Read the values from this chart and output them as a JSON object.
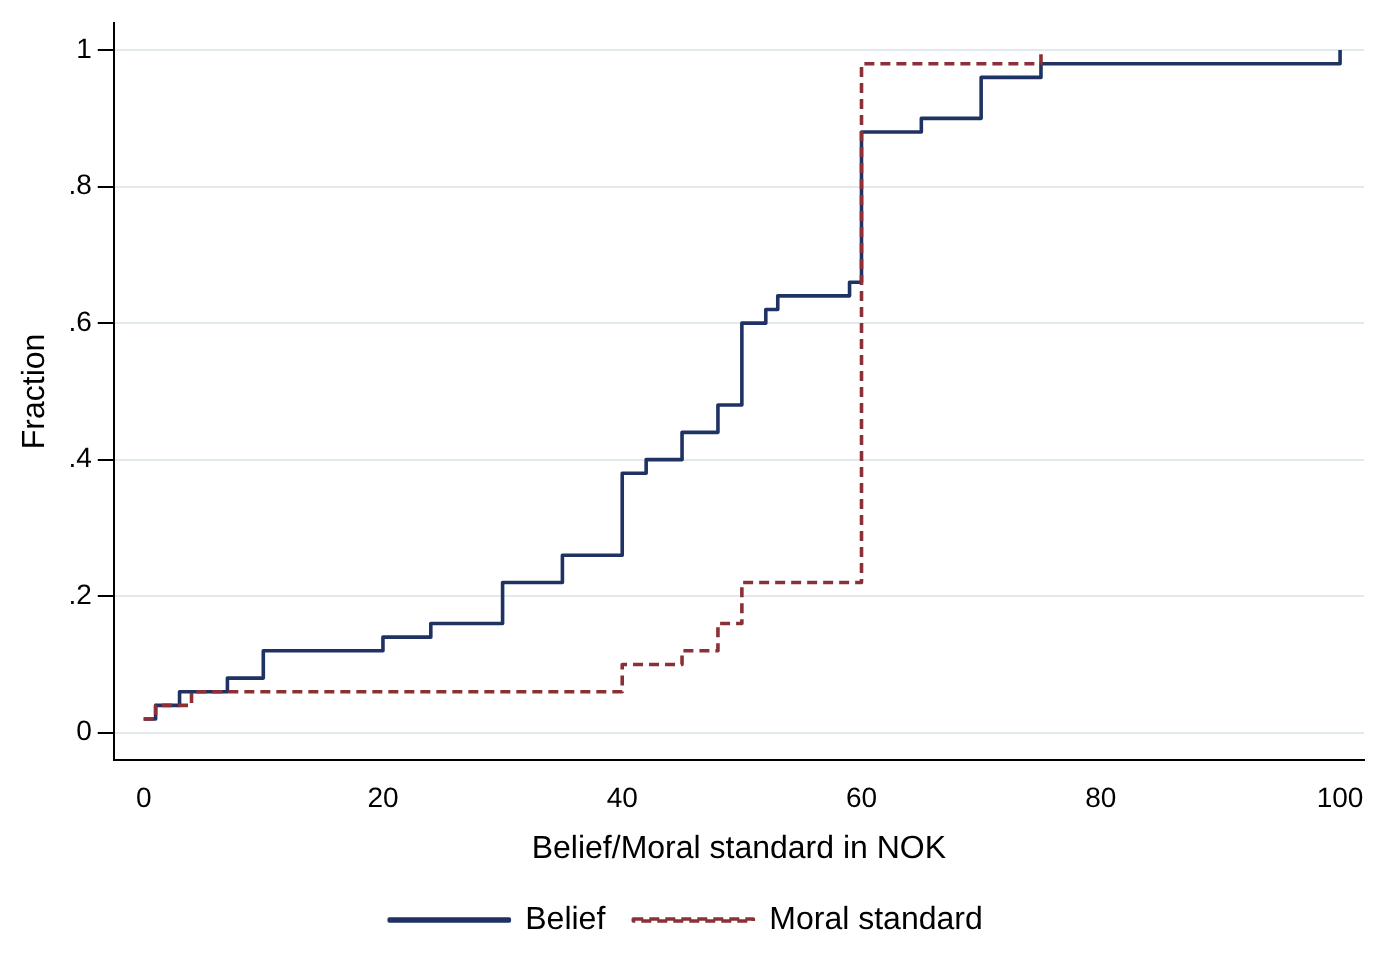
{
  "chart_data": {
    "type": "step",
    "xlabel": "Belief/Moral standard in NOK",
    "ylabel": "Fraction",
    "xlim": [
      -2.5,
      102
    ],
    "xticks": [
      0,
      20,
      40,
      60,
      80,
      100
    ],
    "ylim": [
      -0.04,
      1.04
    ],
    "yticks": [
      {
        "value": 0,
        "label": "0"
      },
      {
        "value": 0.2,
        "label": ".2"
      },
      {
        "value": 0.4,
        "label": ".4"
      },
      {
        "value": 0.6,
        "label": ".6"
      },
      {
        "value": 0.8,
        "label": ".8"
      },
      {
        "value": 1,
        "label": "1"
      }
    ],
    "grid": "y",
    "legend": "bottom",
    "marker": "none",
    "series": [
      {
        "name": "Belief",
        "color": "#1f3263",
        "line_style": "solid",
        "x": [
          0,
          1,
          3,
          7,
          10,
          20,
          24,
          30,
          35,
          40,
          42,
          45,
          48,
          50,
          52,
          53,
          59,
          60,
          65,
          70,
          75,
          100
        ],
        "values": [
          0.02,
          0.04,
          0.06,
          0.08,
          0.12,
          0.14,
          0.16,
          0.22,
          0.26,
          0.38,
          0.4,
          0.44,
          0.48,
          0.6,
          0.62,
          0.64,
          0.66,
          0.88,
          0.9,
          0.96,
          0.98,
          1
        ]
      },
      {
        "name": "Moral standard",
        "color": "#8c3038",
        "line_style": "dashed",
        "x": [
          0,
          1,
          4,
          40,
          45,
          48,
          50,
          60,
          75
        ],
        "values": [
          0.02,
          0.04,
          0.06,
          0.1,
          0.12,
          0.16,
          0.22,
          0.98,
          1
        ]
      }
    ]
  }
}
